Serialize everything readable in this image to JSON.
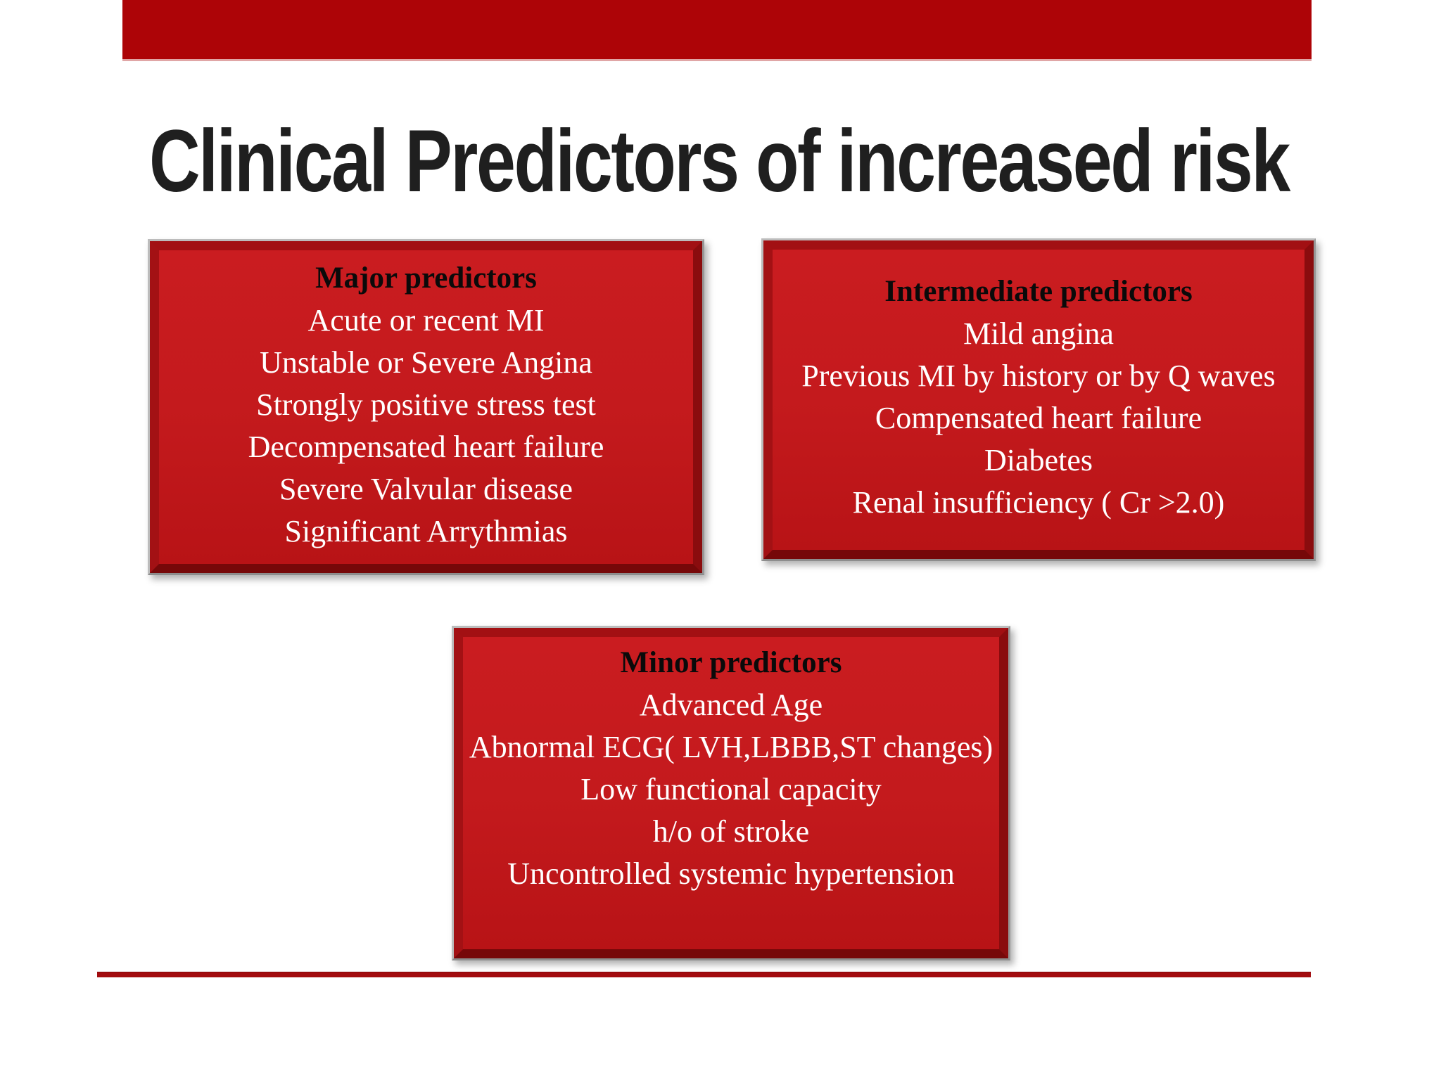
{
  "slide": {
    "title": "Clinical Predictors of increased risk"
  },
  "boxes": {
    "major": {
      "title": "Major predictors",
      "items": [
        "Acute or recent MI",
        "Unstable or Severe Angina",
        "Strongly positive stress test",
        "Decompensated heart failure",
        "Severe Valvular disease",
        "Significant Arrythmias"
      ]
    },
    "intermediate": {
      "title": "Intermediate predictors",
      "items": [
        "Mild angina",
        "Previous MI by history or by Q waves",
        "Compensated heart failure",
        "Diabetes",
        "Renal insufficiency ( Cr >2.0)"
      ]
    },
    "minor": {
      "title": "Minor predictors",
      "items": [
        "Advanced Age",
        "Abnormal ECG( LVH,LBBB,ST changes)",
        "Low functional capacity",
        "h/o of stroke",
        "Uncontrolled systemic hypertension"
      ]
    }
  },
  "colors": {
    "bar_red": "#ad0407",
    "box_red": "#c41a1d",
    "rule_red": "#a30c0f",
    "title_black": "#1f1f1f",
    "item_text": "#ffffff"
  }
}
